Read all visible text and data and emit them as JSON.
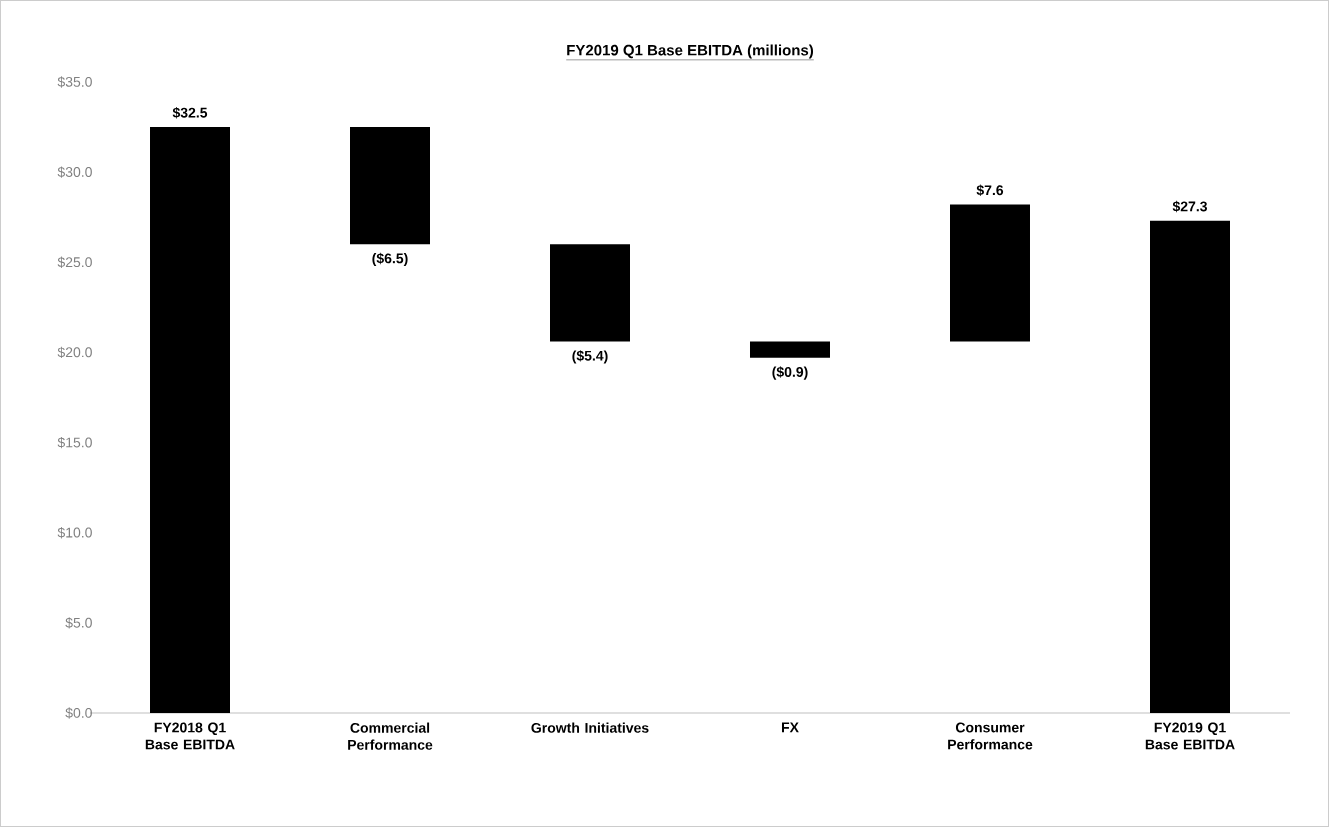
{
  "chart_data": {
    "type": "bar",
    "title": "FY2019 Q1 Base EBITDA (millions)",
    "categories": [
      "FY2018 Q1 Base EBITDA",
      "Commercial Performance",
      "Growth Initiatives",
      "FX",
      "Consumer Performance",
      "FY2019 Q1 Base EBITDA"
    ],
    "values": [
      32.5,
      -6.5,
      -5.4,
      -0.9,
      7.6,
      27.3
    ],
    "base": [
      0,
      32.5,
      26.0,
      20.6,
      20.6,
      0
    ],
    "value_labels": [
      "$32.5",
      "($6.5)",
      "($5.4)",
      "($0.9)",
      "$7.6",
      "$27.3"
    ],
    "color": "#000000",
    "ylim": [
      0,
      35
    ],
    "yticks": [
      {
        "value": 0,
        "label": "$0.0"
      },
      {
        "value": 5,
        "label": "$5.0"
      },
      {
        "value": 10,
        "label": "$10.0"
      },
      {
        "value": 15,
        "label": "$15.0"
      },
      {
        "value": 20,
        "label": "$20.0"
      },
      {
        "value": 25,
        "label": "$25.0"
      },
      {
        "value": 30,
        "label": "$30.0"
      },
      {
        "value": 35,
        "label": "$35.0"
      }
    ],
    "grid": false
  }
}
